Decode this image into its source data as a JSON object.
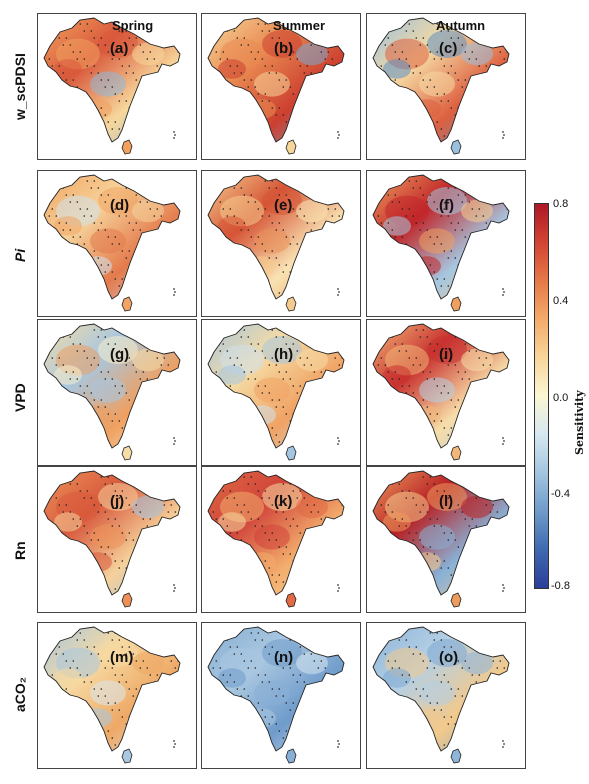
{
  "seasons": [
    "Spring",
    "Summer",
    "Autumn"
  ],
  "rows": [
    {
      "label": "w_scPDSI",
      "italic": false
    },
    {
      "label": "Pi",
      "italic": true
    },
    {
      "label": "VPD",
      "italic": false
    },
    {
      "label": "Rn",
      "italic_suffix": "n",
      "italic": false
    },
    {
      "label": "aCO₂",
      "italic": false
    }
  ],
  "panels": [
    {
      "id": "(a)",
      "row": 0,
      "col": 0,
      "palette": [
        "#f1a05e",
        "#d9593c",
        "#f7d79b",
        "#8fb8d8"
      ]
    },
    {
      "id": "(b)",
      "row": 0,
      "col": 1,
      "palette": [
        "#f7d69a",
        "#e98a52",
        "#cc3f2f",
        "#7aa7cf"
      ]
    },
    {
      "id": "(c)",
      "row": 0,
      "col": 2,
      "palette": [
        "#9ac0de",
        "#f5d9a2",
        "#dd6040",
        "#5d8fc3"
      ]
    },
    {
      "id": "(d)",
      "row": 1,
      "col": 0,
      "palette": [
        "#f1a463",
        "#f6d29a",
        "#e47a4c",
        "#d0e1ec"
      ]
    },
    {
      "id": "(e)",
      "row": 1,
      "col": 1,
      "palette": [
        "#f5cc8e",
        "#d65537",
        "#f9e3b3",
        "#e9915a"
      ]
    },
    {
      "id": "(f)",
      "row": 1,
      "col": 2,
      "palette": [
        "#ef9f5f",
        "#c1272a",
        "#a6c6e0",
        "#f5cc8e"
      ]
    },
    {
      "id": "(g)",
      "row": 2,
      "col": 0,
      "palette": [
        "#f7dca5",
        "#a8c7e0",
        "#ef9f5f",
        "#f9ecc8"
      ]
    },
    {
      "id": "(h)",
      "row": 2,
      "col": 1,
      "palette": [
        "#a6c6e0",
        "#f5dba4",
        "#f0a263",
        "#cfe0ec"
      ]
    },
    {
      "id": "(i)",
      "row": 2,
      "col": 2,
      "palette": [
        "#f3b779",
        "#c8322f",
        "#f7dda8",
        "#b4cfe4"
      ]
    },
    {
      "id": "(j)",
      "row": 3,
      "col": 0,
      "palette": [
        "#ec9158",
        "#d85a3d",
        "#f6d09a",
        "#a2c3df"
      ]
    },
    {
      "id": "(k)",
      "row": 3,
      "col": 1,
      "palette": [
        "#e06a43",
        "#d0443a",
        "#f3ad6c",
        "#f6d8a0"
      ]
    },
    {
      "id": "(l)",
      "row": 3,
      "col": 2,
      "palette": [
        "#ee9b5e",
        "#b82124",
        "#89b1d6",
        "#f5cc8e"
      ]
    },
    {
      "id": "(m)",
      "row": 4,
      "col": 0,
      "palette": [
        "#a8c7e0",
        "#f6d9a1",
        "#eea865",
        "#dbe8f0"
      ]
    },
    {
      "id": "(n)",
      "row": 4,
      "col": 1,
      "palette": [
        "#88afd5",
        "#a9c7e0",
        "#6f9bcb",
        "#d6e5ef"
      ]
    },
    {
      "id": "(o)",
      "row": 4,
      "col": 2,
      "palette": [
        "#8fb5d8",
        "#b5d0e5",
        "#f3c98a",
        "#7ea8d1"
      ]
    }
  ],
  "legend": {
    "title": "Sensitivity",
    "ticks": [
      "0.8",
      "0.4",
      "0.0",
      "-0.4",
      "-0.8"
    ],
    "range": [
      -0.8,
      0.8
    ],
    "colors": [
      "#2b3f99",
      "#3f69b0",
      "#6e9bca",
      "#a3c5df",
      "#d6e8f1",
      "#fbf6d3",
      "#f8d69a",
      "#f3ab6a",
      "#e67848",
      "#d24433",
      "#ae1826"
    ]
  }
}
